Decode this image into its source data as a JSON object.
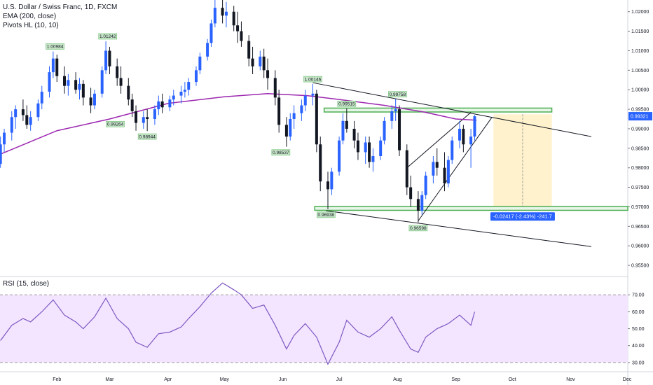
{
  "header": {
    "title": "U.S. Dollar / Swiss Franc, 1D, FXCM",
    "ema_label": "EMA (200, close)",
    "pivots_label": "Pivots HL (10, 10)"
  },
  "rsi_panel": {
    "label": "RSI (15, close)"
  },
  "colors": {
    "up": "#2962ff",
    "down": "#131722",
    "ema": "#9c27b0",
    "rsi": "#7e57c2",
    "rsi_band": "#f3e5ff",
    "zone_green": "#4caf50",
    "projection_fill": "#fff2cc",
    "current_price_bg": "#2962ff",
    "measure_bg": "#2962ff"
  },
  "chart_data": {
    "type": "candlestick",
    "price_axis": {
      "ticks": [
        "1.02000",
        "1.01500",
        "1.01000",
        "1.00500",
        "1.00000",
        "0.99500",
        "0.99000",
        "0.98500",
        "0.98000",
        "0.97500",
        "0.97000",
        "0.96500",
        "0.96000",
        "0.95500"
      ],
      "ylim": [
        0.9525,
        1.023
      ]
    },
    "time_axis": {
      "ticks": [
        "Feb",
        "Mar",
        "Apr",
        "May",
        "Jun",
        "Jul",
        "Aug",
        "Sep",
        "Oct",
        "Nov",
        "Dec"
      ]
    },
    "current_price": "0.99321",
    "pivots": [
      {
        "label": "1.00984",
        "x": "2019-01-31",
        "price": 1.00984,
        "type": "high"
      },
      {
        "label": "1.01242",
        "x": "2019-02-28",
        "price": 1.01242,
        "type": "high"
      },
      {
        "label": "0.99264",
        "x": "2019-03-04",
        "price": 0.99264,
        "type": "low"
      },
      {
        "label": "0.98944",
        "x": "2019-03-21",
        "price": 0.98944,
        "type": "low"
      },
      {
        "label": "0.98537",
        "x": "2019-05-31",
        "price": 0.98537,
        "type": "low"
      },
      {
        "label": "1.00146",
        "x": "2019-06-17",
        "price": 1.00146,
        "type": "high"
      },
      {
        "label": "0.96938",
        "x": "2019-06-24",
        "price": 0.96938,
        "type": "low"
      },
      {
        "label": "0.99515",
        "x": "2019-07-05",
        "price": 0.99515,
        "type": "high"
      },
      {
        "label": "0.99758",
        "x": "2019-08-01",
        "price": 0.99758,
        "type": "high"
      },
      {
        "label": "0.96598",
        "x": "2019-08-12",
        "price": 0.96598,
        "type": "low"
      }
    ],
    "zones": [
      {
        "name": "resistance",
        "top": 0.9953,
        "bottom": 0.9943
      },
      {
        "name": "support",
        "top": 0.9701,
        "bottom": 0.9691
      }
    ],
    "measure_label": "-0.02417 (-2.43%) -241.7",
    "ema_200": [
      [
        "2019-01-02",
        0.9835
      ],
      [
        "2019-02-01",
        0.9895
      ],
      [
        "2019-03-01",
        0.9925
      ],
      [
        "2019-04-01",
        0.9965
      ],
      [
        "2019-05-01",
        0.9982
      ],
      [
        "2019-05-24",
        0.999
      ],
      [
        "2019-06-14",
        0.9985
      ],
      [
        "2019-07-01",
        0.9975
      ],
      [
        "2019-07-25",
        0.996
      ],
      [
        "2019-08-15",
        0.9943
      ],
      [
        "2019-09-01",
        0.9925
      ],
      [
        "2019-09-12",
        0.9922
      ]
    ],
    "candles": [
      [
        "2019-01-02",
        0.981,
        0.988,
        0.98,
        0.986
      ],
      [
        "2019-01-04",
        0.986,
        0.99,
        0.984,
        0.989
      ],
      [
        "2019-01-08",
        0.989,
        0.9945,
        0.987,
        0.993
      ],
      [
        "2019-01-10",
        0.993,
        0.996,
        0.99,
        0.995
      ],
      [
        "2019-01-14",
        0.995,
        0.9975,
        0.992,
        0.9935
      ],
      [
        "2019-01-16",
        0.9935,
        0.996,
        0.99,
        0.991
      ],
      [
        "2019-01-18",
        0.991,
        0.9945,
        0.9895,
        0.993
      ],
      [
        "2019-01-22",
        0.993,
        0.9975,
        0.992,
        0.9965
      ],
      [
        "2019-01-24",
        0.9965,
        1.001,
        0.995,
        0.9995
      ],
      [
        "2019-01-28",
        0.9995,
        1.006,
        0.998,
        1.0045
      ],
      [
        "2019-01-30",
        1.0045,
        1.0098,
        1.003,
        1.008
      ],
      [
        "2019-02-01",
        1.008,
        1.009,
        1.002,
        1.0035
      ],
      [
        "2019-02-05",
        1.0035,
        1.006,
        0.999,
        1.001
      ],
      [
        "2019-02-07",
        1.001,
        1.004,
        0.9985,
        1.0025
      ],
      [
        "2019-02-11",
        1.0025,
        1.0045,
        0.999,
        1.0
      ],
      [
        "2019-02-13",
        1.0,
        1.003,
        0.9975,
        1.0015
      ],
      [
        "2019-02-15",
        1.0015,
        1.0025,
        0.996,
        0.998
      ],
      [
        "2019-02-19",
        0.998,
        1.0005,
        0.994,
        0.996
      ],
      [
        "2019-02-21",
        0.996,
        1.0,
        0.995,
        0.999
      ],
      [
        "2019-02-25",
        0.999,
        1.006,
        0.998,
        1.005
      ],
      [
        "2019-02-27",
        1.005,
        1.0124,
        1.004,
        1.01
      ],
      [
        "2019-03-01",
        1.01,
        1.011,
        1.004,
        1.006
      ],
      [
        "2019-03-05",
        1.006,
        1.008,
        1.001,
        1.003
      ],
      [
        "2019-03-07",
        1.003,
        1.006,
        0.999,
        1.001
      ],
      [
        "2019-03-11",
        1.001,
        1.003,
        0.996,
        0.9975
      ],
      [
        "2019-03-13",
        0.9975,
        0.999,
        0.993,
        0.9945
      ],
      [
        "2019-03-15",
        0.9945,
        0.996,
        0.9895,
        0.9915
      ],
      [
        "2019-03-19",
        0.9915,
        0.9945,
        0.99,
        0.993
      ],
      [
        "2019-03-21",
        0.993,
        0.995,
        0.9894,
        0.9925
      ],
      [
        "2019-03-25",
        0.9925,
        0.996,
        0.991,
        0.995
      ],
      [
        "2019-03-27",
        0.995,
        0.9985,
        0.9935,
        0.997
      ],
      [
        "2019-03-29",
        0.997,
        0.999,
        0.994,
        0.9955
      ],
      [
        "2019-04-02",
        0.9955,
        0.9985,
        0.9945,
        0.9975
      ],
      [
        "2019-04-04",
        0.9975,
        1.0,
        0.996,
        0.9985
      ],
      [
        "2019-04-08",
        0.9985,
        1.001,
        0.9965,
        0.9995
      ],
      [
        "2019-04-10",
        0.9995,
        1.002,
        0.998,
        1.0
      ],
      [
        "2019-04-12",
        1.0,
        1.003,
        0.9985,
        1.002
      ],
      [
        "2019-04-16",
        1.002,
        1.006,
        1.001,
        1.005
      ],
      [
        "2019-04-18",
        1.005,
        1.0095,
        1.004,
        1.0085
      ],
      [
        "2019-04-22",
        1.0085,
        1.013,
        1.0075,
        1.012
      ],
      [
        "2019-04-24",
        1.012,
        1.018,
        1.011,
        1.017
      ],
      [
        "2019-04-26",
        1.017,
        1.0235,
        1.016,
        1.021
      ],
      [
        "2019-04-30",
        1.021,
        1.023,
        1.017,
        1.019
      ],
      [
        "2019-05-02",
        1.019,
        1.0225,
        1.016,
        1.02
      ],
      [
        "2019-05-06",
        1.02,
        1.0215,
        1.015,
        1.0165
      ],
      [
        "2019-05-08",
        1.0165,
        1.02,
        1.012,
        1.015
      ],
      [
        "2019-05-10",
        1.015,
        1.0175,
        1.011,
        1.0125
      ],
      [
        "2019-05-14",
        1.0125,
        1.014,
        1.006,
        1.008
      ],
      [
        "2019-05-16",
        1.008,
        1.011,
        1.004,
        1.006
      ],
      [
        "2019-05-20",
        1.006,
        1.01,
        1.005,
        1.0085
      ],
      [
        "2019-05-22",
        1.0085,
        1.0105,
        1.003,
        1.005
      ],
      [
        "2019-05-24",
        1.005,
        1.008,
        1.0,
        1.003
      ],
      [
        "2019-05-28",
        1.003,
        1.005,
        0.996,
        0.998
      ],
      [
        "2019-05-30",
        0.998,
        1.0,
        0.989,
        0.991
      ],
      [
        "2019-06-03",
        0.991,
        0.993,
        0.9854,
        0.988
      ],
      [
        "2019-06-05",
        0.988,
        0.994,
        0.987,
        0.9925
      ],
      [
        "2019-06-07",
        0.9925,
        0.996,
        0.99,
        0.994
      ],
      [
        "2019-06-11",
        0.994,
        0.9975,
        0.992,
        0.996
      ],
      [
        "2019-06-13",
        0.996,
        1.0,
        0.9945,
        0.9985
      ],
      [
        "2019-06-17",
        0.9985,
        1.0015,
        0.996,
        0.999
      ],
      [
        "2019-06-19",
        0.999,
        1.0,
        0.984,
        0.986
      ],
      [
        "2019-06-21",
        0.986,
        0.988,
        0.974,
        0.9765
      ],
      [
        "2019-06-25",
        0.9765,
        0.979,
        0.9694,
        0.9745
      ],
      [
        "2019-06-27",
        0.9745,
        0.98,
        0.973,
        0.979
      ],
      [
        "2019-07-01",
        0.979,
        0.988,
        0.978,
        0.987
      ],
      [
        "2019-07-03",
        0.987,
        0.994,
        0.986,
        0.992
      ],
      [
        "2019-07-05",
        0.992,
        0.9952,
        0.989,
        0.99
      ],
      [
        "2019-07-09",
        0.99,
        0.992,
        0.985,
        0.987
      ],
      [
        "2019-07-11",
        0.987,
        0.989,
        0.982,
        0.984
      ],
      [
        "2019-07-15",
        0.984,
        0.988,
        0.981,
        0.9865
      ],
      [
        "2019-07-17",
        0.9865,
        0.988,
        0.98,
        0.9815
      ],
      [
        "2019-07-19",
        0.9815,
        0.985,
        0.979,
        0.983
      ],
      [
        "2019-07-23",
        0.983,
        0.988,
        0.982,
        0.987
      ],
      [
        "2019-07-25",
        0.987,
        0.993,
        0.986,
        0.992
      ],
      [
        "2019-07-29",
        0.992,
        0.996,
        0.99,
        0.9945
      ],
      [
        "2019-07-31",
        0.9945,
        0.9976,
        0.992,
        0.995
      ],
      [
        "2019-08-02",
        0.995,
        0.996,
        0.983,
        0.9845
      ],
      [
        "2019-08-06",
        0.9845,
        0.986,
        0.973,
        0.975
      ],
      [
        "2019-08-08",
        0.975,
        0.978,
        0.97,
        0.972
      ],
      [
        "2019-08-12",
        0.972,
        0.974,
        0.966,
        0.969
      ],
      [
        "2019-08-14",
        0.969,
        0.974,
        0.968,
        0.973
      ],
      [
        "2019-08-16",
        0.973,
        0.979,
        0.972,
        0.978
      ],
      [
        "2019-08-20",
        0.978,
        0.983,
        0.976,
        0.9815
      ],
      [
        "2019-08-22",
        0.9815,
        0.985,
        0.978,
        0.98
      ],
      [
        "2019-08-26",
        0.98,
        0.984,
        0.974,
        0.976
      ],
      [
        "2019-08-28",
        0.976,
        0.983,
        0.975,
        0.982
      ],
      [
        "2019-08-30",
        0.982,
        0.988,
        0.981,
        0.987
      ],
      [
        "2019-09-03",
        0.987,
        0.992,
        0.985,
        0.99
      ],
      [
        "2019-09-05",
        0.99,
        0.991,
        0.984,
        0.986
      ],
      [
        "2019-09-09",
        0.986,
        0.99,
        0.98,
        0.988
      ],
      [
        "2019-09-11",
        0.988,
        0.9935,
        0.987,
        0.9932
      ]
    ],
    "rsi": {
      "axis_ticks": [
        "70.00",
        "60.00",
        "50.00",
        "40.00",
        "30.00"
      ],
      "band": [
        30,
        70
      ],
      "ylim": [
        25,
        80
      ],
      "values": [
        [
          "2019-01-02",
          43
        ],
        [
          "2019-01-08",
          52
        ],
        [
          "2019-01-14",
          56
        ],
        [
          "2019-01-18",
          54
        ],
        [
          "2019-01-24",
          60
        ],
        [
          "2019-01-30",
          67
        ],
        [
          "2019-02-05",
          58
        ],
        [
          "2019-02-11",
          54
        ],
        [
          "2019-02-15",
          50
        ],
        [
          "2019-02-21",
          57
        ],
        [
          "2019-02-27",
          68
        ],
        [
          "2019-03-05",
          56
        ],
        [
          "2019-03-11",
          50
        ],
        [
          "2019-03-15",
          42
        ],
        [
          "2019-03-21",
          39
        ],
        [
          "2019-03-27",
          47
        ],
        [
          "2019-04-02",
          48
        ],
        [
          "2019-04-08",
          51
        ],
        [
          "2019-04-12",
          56
        ],
        [
          "2019-04-18",
          63
        ],
        [
          "2019-04-24",
          71
        ],
        [
          "2019-04-30",
          77
        ],
        [
          "2019-05-06",
          73
        ],
        [
          "2019-05-10",
          70
        ],
        [
          "2019-05-16",
          62
        ],
        [
          "2019-05-22",
          64
        ],
        [
          "2019-05-28",
          52
        ],
        [
          "2019-06-03",
          38
        ],
        [
          "2019-06-07",
          46
        ],
        [
          "2019-06-13",
          53
        ],
        [
          "2019-06-19",
          45
        ],
        [
          "2019-06-25",
          29
        ],
        [
          "2019-07-01",
          42
        ],
        [
          "2019-07-05",
          55
        ],
        [
          "2019-07-11",
          48
        ],
        [
          "2019-07-17",
          45
        ],
        [
          "2019-07-23",
          50
        ],
        [
          "2019-07-29",
          57
        ],
        [
          "2019-08-02",
          49
        ],
        [
          "2019-08-08",
          38
        ],
        [
          "2019-08-12",
          36
        ],
        [
          "2019-08-16",
          45
        ],
        [
          "2019-08-22",
          50
        ],
        [
          "2019-08-28",
          53
        ],
        [
          "2019-09-03",
          58
        ],
        [
          "2019-09-09",
          52
        ],
        [
          "2019-09-11",
          60
        ]
      ]
    }
  }
}
